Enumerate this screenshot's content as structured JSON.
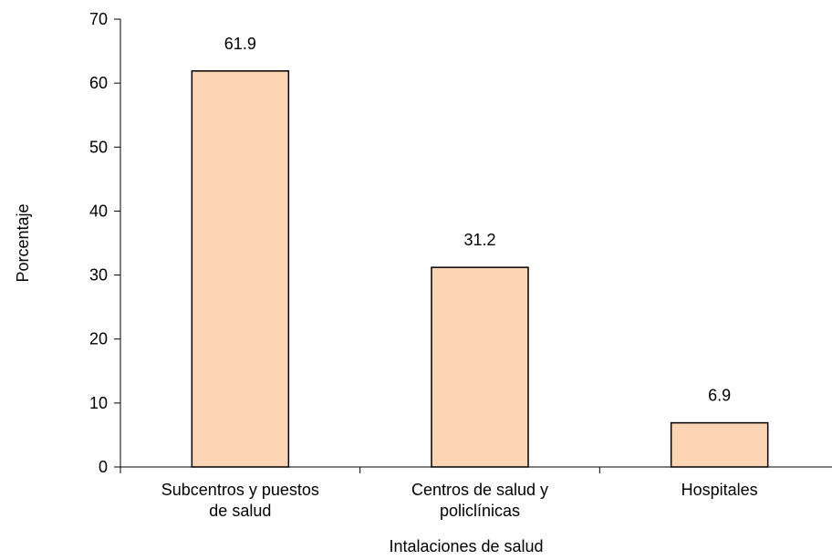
{
  "chart_data": {
    "type": "bar",
    "categories": [
      [
        "Subcentros y puestos",
        "de salud"
      ],
      [
        "Centros de salud y",
        "policlínicas"
      ],
      [
        "Hospitales"
      ]
    ],
    "values": [
      61.9,
      31.2,
      6.9
    ],
    "value_labels": [
      "61.9",
      "31.2",
      "6.9"
    ],
    "xlabel": "Intalaciones de salud",
    "ylabel": "Porcentaje",
    "ylim": [
      0,
      70
    ],
    "yticks": [
      0,
      10,
      20,
      30,
      40,
      50,
      60,
      70
    ],
    "grid": false,
    "legend": "none",
    "colors": {
      "bar_fill": "#FCD5B5",
      "bar_stroke": "#000000",
      "axis": "#000000"
    }
  }
}
